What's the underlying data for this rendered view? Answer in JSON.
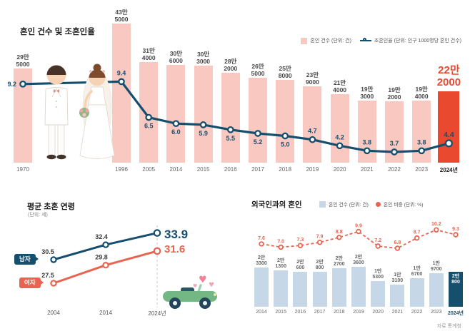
{
  "page": {
    "source_note": "자료 통계청"
  },
  "colors": {
    "pink": "#f9c8c1",
    "red": "#e8492f",
    "navy": "#164f6e",
    "light_blue": "#c6d8e7",
    "orange": "#e96450"
  },
  "chart_data": [
    {
      "id": "marriage-count-and-rate",
      "type": "bar+line",
      "title": "혼인 건수 및 조혼인율",
      "legend": [
        "혼인 건수 (단위: 건)",
        "조혼인율 (단위: 인구 1000명당 혼인 건수)"
      ],
      "categories": [
        "1970",
        "1996",
        "2005",
        "2014",
        "2015",
        "2016",
        "2017",
        "2018",
        "2019",
        "2020",
        "2021",
        "2022",
        "2023",
        "2024년"
      ],
      "highlight_index": 13,
      "bar_series": {
        "name": "혼인 건수",
        "values": [
          295000,
          435000,
          314000,
          306000,
          303000,
          282000,
          265000,
          258000,
          239000,
          214000,
          193000,
          192000,
          194000,
          222000
        ],
        "labels": [
          [
            "29만",
            "5000"
          ],
          [
            "43만",
            "5000"
          ],
          [
            "31만",
            "4000"
          ],
          [
            "30만",
            "6000"
          ],
          [
            "30만",
            "3000"
          ],
          [
            "28만",
            "2000"
          ],
          [
            "26만",
            "5000"
          ],
          [
            "25만",
            "8000"
          ],
          [
            "23만",
            "9000"
          ],
          [
            "21만",
            "4000"
          ],
          [
            "19만",
            "3000"
          ],
          [
            "19만",
            "2000"
          ],
          [
            "19만",
            "4000"
          ],
          [
            "22만",
            "2000"
          ]
        ]
      },
      "line_series": {
        "name": "조혼인율",
        "values": [
          9.2,
          9.4,
          6.5,
          6.0,
          5.9,
          5.5,
          5.2,
          5.0,
          4.7,
          4.2,
          3.8,
          3.7,
          3.8,
          4.4
        ]
      }
    },
    {
      "id": "average-first-marriage-age",
      "type": "line",
      "title": "평균 초혼 연령",
      "unit_label": "(단위: 세)",
      "categories": [
        "2004",
        "2014",
        "2024년"
      ],
      "series": [
        {
          "name": "남자",
          "values": [
            30.5,
            32.4,
            33.9
          ]
        },
        {
          "name": "여자",
          "values": [
            27.5,
            29.8,
            31.6
          ]
        }
      ]
    },
    {
      "id": "marriage-with-foreigners",
      "type": "bar+line",
      "title": "외국인과의 혼인",
      "legend": [
        "혼인 건수 (단위: 건)",
        "혼인 비중 (단위: %)"
      ],
      "categories": [
        "2014",
        "2015",
        "2016",
        "2017",
        "2018",
        "2019",
        "2020",
        "2021",
        "2022",
        "2023",
        "2024년"
      ],
      "highlight_index": 10,
      "bar_series": {
        "name": "혼인 건수",
        "values": [
          23300,
          21300,
          20600,
          20800,
          22700,
          23600,
          15300,
          13100,
          16700,
          19700,
          20800
        ],
        "labels": [
          [
            "2만",
            "3300"
          ],
          [
            "2만",
            "1300"
          ],
          [
            "2만",
            "600"
          ],
          [
            "2만",
            "800"
          ],
          [
            "2만",
            "2700"
          ],
          [
            "2만",
            "3600"
          ],
          [
            "1만",
            "5300"
          ],
          [
            "1만",
            "3100"
          ],
          [
            "1만",
            "6700"
          ],
          [
            "1만",
            "9700"
          ],
          [
            "2만",
            "800"
          ]
        ]
      },
      "line_series": {
        "name": "혼인 비중",
        "values": [
          7.6,
          7.0,
          7.3,
          7.9,
          8.8,
          9.9,
          7.2,
          6.8,
          8.7,
          10.2,
          9.3
        ]
      }
    }
  ]
}
